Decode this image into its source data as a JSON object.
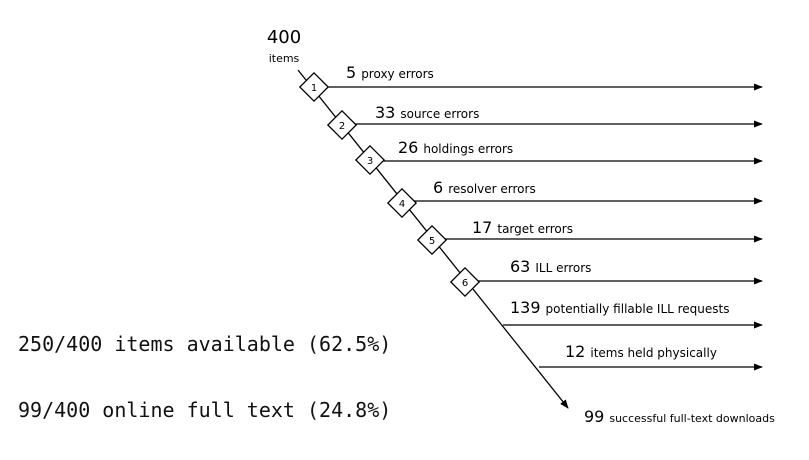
{
  "start": {
    "count": "400",
    "unit": "items"
  },
  "steps": [
    {
      "number": "1",
      "count": "5",
      "label": "proxy errors"
    },
    {
      "number": "2",
      "count": "33",
      "label": "source errors"
    },
    {
      "number": "3",
      "count": "26",
      "label": "holdings errors"
    },
    {
      "number": "4",
      "count": "6",
      "label": "resolver errors"
    },
    {
      "number": "5",
      "count": "17",
      "label": "target errors"
    },
    {
      "number": "6",
      "count": "63",
      "label": "ILL errors"
    }
  ],
  "extra_branches": [
    {
      "count": "139",
      "label": "potentially fillable ILL requests"
    },
    {
      "count": "12",
      "label": "items held physically"
    }
  ],
  "end": {
    "count": "99",
    "label": "successful full-text downloads"
  },
  "summary": {
    "available": "250/400 items available (62.5%)",
    "fulltext": "99/400 online full text (24.8%)"
  }
}
